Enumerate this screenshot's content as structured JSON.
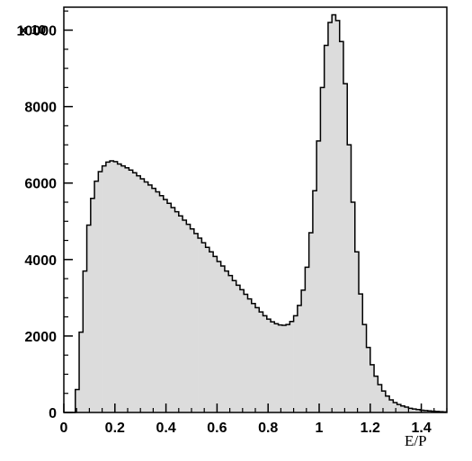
{
  "chart_data": {
    "type": "area",
    "title": "",
    "xlabel": "E/P",
    "ylabel": "",
    "y_scale_label": "x 10",
    "xlim": [
      0,
      1.5
    ],
    "ylim": [
      0,
      10600
    ],
    "grid": false,
    "legend": "none",
    "x_ticks": [
      0,
      0.2,
      0.4,
      0.6,
      0.8,
      1,
      1.2,
      1.4
    ],
    "x_tick_labels": [
      "0",
      "0.2",
      "0.4",
      "0.6",
      "0.8",
      "1",
      "1.2",
      "1.4"
    ],
    "y_ticks": [
      0,
      2000,
      4000,
      6000,
      8000,
      10000
    ],
    "y_tick_labels": [
      "0",
      "2000",
      "4000",
      "6000",
      "8000",
      "10000"
    ],
    "bin_width": 0.015,
    "series": [
      {
        "fill_color": "#dcdcdc",
        "line_color": "#000000",
        "x": [
          0,
          0.015,
          0.03,
          0.045,
          0.06,
          0.075,
          0.09,
          0.105,
          0.12,
          0.135,
          0.15,
          0.165,
          0.18,
          0.195,
          0.21,
          0.225,
          0.24,
          0.255,
          0.27,
          0.285,
          0.3,
          0.315,
          0.33,
          0.345,
          0.36,
          0.375,
          0.39,
          0.405,
          0.42,
          0.435,
          0.45,
          0.465,
          0.48,
          0.495,
          0.51,
          0.525,
          0.54,
          0.555,
          0.57,
          0.585,
          0.6,
          0.615,
          0.63,
          0.645,
          0.66,
          0.675,
          0.69,
          0.705,
          0.72,
          0.735,
          0.75,
          0.765,
          0.78,
          0.795,
          0.81,
          0.825,
          0.84,
          0.855,
          0.87,
          0.885,
          0.9,
          0.915,
          0.93,
          0.945,
          0.96,
          0.975,
          0.99,
          1.005,
          1.02,
          1.035,
          1.05,
          1.065,
          1.08,
          1.095,
          1.11,
          1.125,
          1.14,
          1.155,
          1.17,
          1.185,
          1.2,
          1.215,
          1.23,
          1.245,
          1.26,
          1.275,
          1.29,
          1.305,
          1.32,
          1.335,
          1.35,
          1.365,
          1.38,
          1.395,
          1.41,
          1.425,
          1.44,
          1.455,
          1.47,
          1.485
        ],
        "values": [
          0,
          0,
          0,
          600,
          2100,
          3700,
          4900,
          5600,
          6050,
          6300,
          6450,
          6550,
          6580,
          6560,
          6500,
          6450,
          6400,
          6340,
          6270,
          6190,
          6110,
          6030,
          5950,
          5860,
          5770,
          5670,
          5570,
          5470,
          5360,
          5250,
          5140,
          5030,
          4920,
          4800,
          4680,
          4560,
          4440,
          4320,
          4200,
          4080,
          3950,
          3830,
          3700,
          3580,
          3450,
          3330,
          3210,
          3090,
          2970,
          2850,
          2740,
          2630,
          2530,
          2440,
          2370,
          2320,
          2290,
          2280,
          2300,
          2380,
          2530,
          2800,
          3200,
          3800,
          4700,
          5800,
          7100,
          8500,
          9600,
          10200,
          10400,
          10250,
          9700,
          8600,
          7000,
          5500,
          4200,
          3100,
          2300,
          1700,
          1250,
          950,
          730,
          560,
          430,
          330,
          260,
          210,
          170,
          140,
          110,
          90,
          75,
          60,
          50,
          40,
          33,
          26,
          20,
          14
        ]
      }
    ]
  }
}
